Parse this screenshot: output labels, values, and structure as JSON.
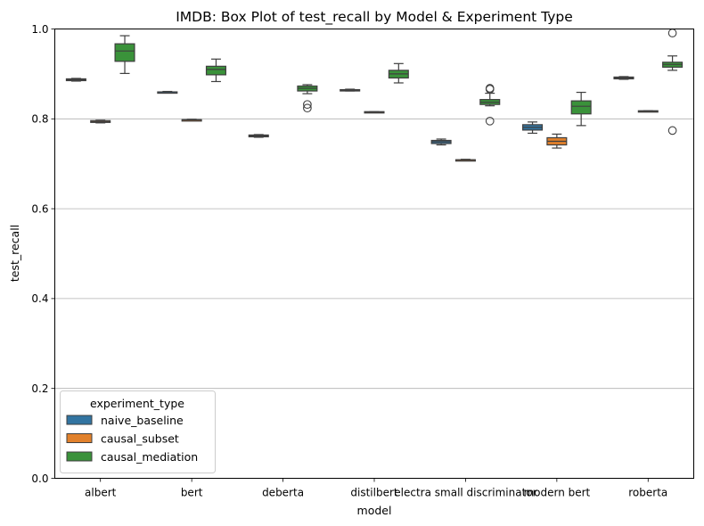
{
  "chart_data": {
    "type": "box",
    "title": "IMDB: Box Plot of test_recall by Model & Experiment Type",
    "xlabel": "model",
    "ylabel": "test_recall",
    "ylim": [
      0.0,
      1.0
    ],
    "yticks": [
      "0.0",
      "0.2",
      "0.4",
      "0.6",
      "0.8",
      "1.0"
    ],
    "grid": "y",
    "legend": {
      "title": "experiment_type",
      "placement": "lower-left"
    },
    "categories": [
      "albert",
      "bert",
      "deberta",
      "distilbert",
      "electra small discriminator",
      "modern bert",
      "roberta"
    ],
    "series": [
      {
        "name": "naive_baseline",
        "color": "#3274a1",
        "boxes": [
          {
            "whislo": 0.884,
            "q1": 0.885,
            "med": 0.887,
            "q3": 0.889,
            "whishi": 0.89,
            "fliers": []
          },
          {
            "whislo": 0.859,
            "q1": 0.859,
            "med": 0.86,
            "q3": 0.86,
            "whishi": 0.861,
            "fliers": []
          },
          {
            "whislo": 0.759,
            "q1": 0.76,
            "med": 0.762,
            "q3": 0.764,
            "whishi": 0.765,
            "fliers": []
          },
          {
            "whislo": 0.862,
            "q1": 0.863,
            "med": 0.864,
            "q3": 0.865,
            "whishi": 0.866,
            "fliers": []
          },
          {
            "whislo": 0.742,
            "q1": 0.745,
            "med": 0.749,
            "q3": 0.752,
            "whishi": 0.755,
            "fliers": []
          },
          {
            "whislo": 0.768,
            "q1": 0.775,
            "med": 0.781,
            "q3": 0.787,
            "whishi": 0.793,
            "fliers": []
          },
          {
            "whislo": 0.888,
            "q1": 0.889,
            "med": 0.891,
            "q3": 0.893,
            "whishi": 0.894,
            "fliers": []
          }
        ]
      },
      {
        "name": "causal_subset",
        "color": "#e1812c",
        "boxes": [
          {
            "whislo": 0.791,
            "q1": 0.792,
            "med": 0.794,
            "q3": 0.796,
            "whishi": 0.797,
            "fliers": []
          },
          {
            "whislo": 0.797,
            "q1": 0.797,
            "med": 0.798,
            "q3": 0.798,
            "whishi": 0.799,
            "fliers": []
          },
          null,
          {
            "whislo": 0.814,
            "q1": 0.815,
            "med": 0.815,
            "q3": 0.816,
            "whishi": 0.816,
            "fliers": []
          },
          {
            "whislo": 0.708,
            "q1": 0.708,
            "med": 0.709,
            "q3": 0.709,
            "whishi": 0.71,
            "fliers": []
          },
          {
            "whislo": 0.735,
            "q1": 0.742,
            "med": 0.75,
            "q3": 0.758,
            "whishi": 0.766,
            "fliers": []
          },
          {
            "whislo": 0.816,
            "q1": 0.817,
            "med": 0.817,
            "q3": 0.818,
            "whishi": 0.818,
            "fliers": []
          }
        ]
      },
      {
        "name": "causal_mediation",
        "color": "#3a923a",
        "boxes": [
          {
            "whislo": 0.901,
            "q1": 0.928,
            "med": 0.951,
            "q3": 0.967,
            "whishi": 0.985,
            "fliers": []
          },
          {
            "whislo": 0.883,
            "q1": 0.898,
            "med": 0.91,
            "q3": 0.917,
            "whishi": 0.933,
            "fliers": []
          },
          {
            "whislo": 0.856,
            "q1": 0.862,
            "med": 0.868,
            "q3": 0.873,
            "whishi": 0.876,
            "fliers": [
              0.832,
              0.824
            ]
          },
          {
            "whislo": 0.88,
            "q1": 0.891,
            "med": 0.9,
            "q3": 0.908,
            "whishi": 0.923,
            "fliers": []
          },
          {
            "whislo": 0.829,
            "q1": 0.832,
            "med": 0.837,
            "q3": 0.843,
            "whishi": 0.857,
            "fliers": [
              0.868,
              0.866,
              0.795
            ]
          },
          {
            "whislo": 0.785,
            "q1": 0.811,
            "med": 0.828,
            "q3": 0.84,
            "whishi": 0.859,
            "fliers": []
          },
          {
            "whislo": 0.908,
            "q1": 0.915,
            "med": 0.921,
            "q3": 0.926,
            "whishi": 0.94,
            "fliers": [
              0.991,
              0.774
            ]
          }
        ]
      }
    ]
  }
}
